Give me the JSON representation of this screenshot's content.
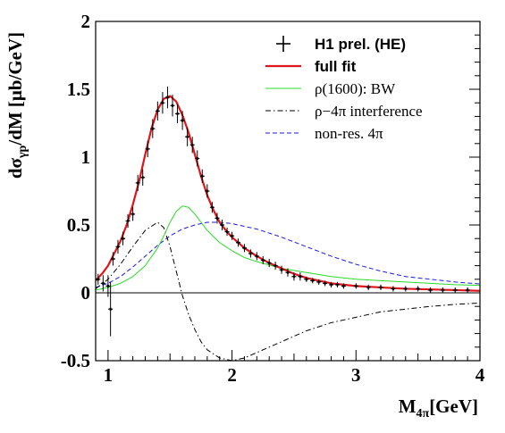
{
  "chart_data": {
    "type": "line",
    "xlabel": "M",
    "xlabel_sub": "4π",
    "xlabel_unit": "[GeV]",
    "ylabel_main": "dσ",
    "ylabel_sub": "γp",
    "ylabel_rest": "/dM [μb/GeV]",
    "xlim": [
      0.9,
      4.0
    ],
    "ylim": [
      -0.5,
      2.0
    ],
    "x_ticks": [
      {
        "value": 1,
        "label": "1"
      },
      {
        "value": 2,
        "label": "2"
      },
      {
        "value": 3,
        "label": "3"
      },
      {
        "value": 4,
        "label": "4"
      }
    ],
    "y_ticks": [
      {
        "value": -0.5,
        "label": "-0.5"
      },
      {
        "value": 0,
        "label": "0"
      },
      {
        "value": 0.5,
        "label": "0.5"
      },
      {
        "value": 1,
        "label": "1"
      },
      {
        "value": 1.5,
        "label": "1.5"
      },
      {
        "value": 2,
        "label": "2"
      }
    ],
    "grid": false,
    "legend_position": "top-right",
    "series": [
      {
        "name": "H1 prel. (HE)",
        "style": "points",
        "color": "#000000",
        "points": [
          [
            0.92,
            0.1,
            0.04
          ],
          [
            0.96,
            0.07,
            0.06
          ],
          [
            1.0,
            0.05,
            0.08
          ],
          [
            1.02,
            -0.12,
            0.2
          ],
          [
            1.04,
            0.25,
            0.05
          ],
          [
            1.08,
            0.34,
            0.05
          ],
          [
            1.12,
            0.4,
            0.05
          ],
          [
            1.16,
            0.53,
            0.05
          ],
          [
            1.2,
            0.58,
            0.05
          ],
          [
            1.24,
            0.81,
            0.06
          ],
          [
            1.28,
            0.85,
            0.06
          ],
          [
            1.32,
            1.06,
            0.06
          ],
          [
            1.36,
            1.21,
            0.07
          ],
          [
            1.4,
            1.34,
            0.07
          ],
          [
            1.44,
            1.4,
            0.08
          ],
          [
            1.48,
            1.44,
            0.08
          ],
          [
            1.52,
            1.38,
            0.08
          ],
          [
            1.56,
            1.32,
            0.07
          ],
          [
            1.6,
            1.27,
            0.07
          ],
          [
            1.64,
            1.15,
            0.07
          ],
          [
            1.68,
            1.09,
            0.06
          ],
          [
            1.72,
            0.99,
            0.06
          ],
          [
            1.76,
            0.86,
            0.05
          ],
          [
            1.8,
            0.75,
            0.05
          ],
          [
            1.84,
            0.63,
            0.04
          ],
          [
            1.88,
            0.55,
            0.04
          ],
          [
            1.92,
            0.5,
            0.04
          ],
          [
            1.96,
            0.45,
            0.03
          ],
          [
            2.0,
            0.42,
            0.03
          ],
          [
            2.05,
            0.37,
            0.03
          ],
          [
            2.1,
            0.33,
            0.03
          ],
          [
            2.15,
            0.29,
            0.03
          ],
          [
            2.2,
            0.27,
            0.03
          ],
          [
            2.25,
            0.24,
            0.03
          ],
          [
            2.3,
            0.22,
            0.03
          ],
          [
            2.35,
            0.2,
            0.03
          ],
          [
            2.4,
            0.17,
            0.03
          ],
          [
            2.45,
            0.15,
            0.03
          ],
          [
            2.5,
            0.12,
            0.03
          ],
          [
            2.55,
            0.12,
            0.03
          ],
          [
            2.6,
            0.1,
            0.02
          ],
          [
            2.65,
            0.09,
            0.02
          ],
          [
            2.7,
            0.08,
            0.02
          ],
          [
            2.75,
            0.07,
            0.02
          ],
          [
            2.8,
            0.06,
            0.02
          ],
          [
            2.85,
            0.06,
            0.02
          ],
          [
            2.9,
            0.05,
            0.02
          ],
          [
            3.0,
            0.05,
            0.02
          ],
          [
            3.1,
            0.04,
            0.02
          ],
          [
            3.2,
            0.04,
            0.02
          ],
          [
            3.3,
            0.03,
            0.02
          ],
          [
            3.4,
            0.03,
            0.02
          ],
          [
            3.5,
            0.03,
            0.02
          ],
          [
            3.6,
            0.02,
            0.02
          ],
          [
            3.7,
            0.02,
            0.02
          ],
          [
            3.8,
            0.02,
            0.02
          ],
          [
            3.9,
            0.02,
            0.02
          ]
        ]
      },
      {
        "name": "full fit",
        "style": "solid-thick",
        "color": "#e0151b",
        "points": [
          [
            0.9,
            0.09
          ],
          [
            0.96,
            0.15
          ],
          [
            1.0,
            0.2
          ],
          [
            1.05,
            0.29
          ],
          [
            1.1,
            0.38
          ],
          [
            1.15,
            0.5
          ],
          [
            1.2,
            0.65
          ],
          [
            1.25,
            0.82
          ],
          [
            1.3,
            1.02
          ],
          [
            1.35,
            1.21
          ],
          [
            1.4,
            1.35
          ],
          [
            1.45,
            1.43
          ],
          [
            1.5,
            1.45
          ],
          [
            1.55,
            1.41
          ],
          [
            1.6,
            1.31
          ],
          [
            1.65,
            1.18
          ],
          [
            1.7,
            1.02
          ],
          [
            1.75,
            0.86
          ],
          [
            1.8,
            0.72
          ],
          [
            1.85,
            0.61
          ],
          [
            1.9,
            0.52
          ],
          [
            1.95,
            0.46
          ],
          [
            2.0,
            0.41
          ],
          [
            2.1,
            0.33
          ],
          [
            2.2,
            0.27
          ],
          [
            2.3,
            0.22
          ],
          [
            2.4,
            0.18
          ],
          [
            2.5,
            0.14
          ],
          [
            2.6,
            0.11
          ],
          [
            2.7,
            0.09
          ],
          [
            2.8,
            0.07
          ],
          [
            3.0,
            0.05
          ],
          [
            3.2,
            0.04
          ],
          [
            3.4,
            0.03
          ],
          [
            3.6,
            0.025
          ],
          [
            3.8,
            0.02
          ],
          [
            4.0,
            0.015
          ]
        ]
      },
      {
        "name": "ρ(1600): BW",
        "style": "solid-thin",
        "color": "#27dc27",
        "points": [
          [
            0.9,
            0.02
          ],
          [
            1.0,
            0.04
          ],
          [
            1.1,
            0.07
          ],
          [
            1.2,
            0.12
          ],
          [
            1.3,
            0.2
          ],
          [
            1.4,
            0.33
          ],
          [
            1.45,
            0.42
          ],
          [
            1.5,
            0.52
          ],
          [
            1.55,
            0.6
          ],
          [
            1.6,
            0.64
          ],
          [
            1.65,
            0.63
          ],
          [
            1.7,
            0.58
          ],
          [
            1.75,
            0.52
          ],
          [
            1.8,
            0.46
          ],
          [
            1.9,
            0.37
          ],
          [
            2.0,
            0.31
          ],
          [
            2.1,
            0.26
          ],
          [
            2.2,
            0.23
          ],
          [
            2.4,
            0.18
          ],
          [
            2.6,
            0.15
          ],
          [
            2.8,
            0.12
          ],
          [
            3.0,
            0.1
          ],
          [
            3.2,
            0.09
          ],
          [
            3.4,
            0.08
          ],
          [
            3.6,
            0.07
          ],
          [
            3.8,
            0.06
          ],
          [
            4.0,
            0.055
          ]
        ]
      },
      {
        "name": "ρ−4π interference",
        "style": "dash-dot",
        "color": "#000000",
        "points": [
          [
            0.9,
            0.03
          ],
          [
            1.0,
            0.1
          ],
          [
            1.1,
            0.21
          ],
          [
            1.2,
            0.34
          ],
          [
            1.3,
            0.46
          ],
          [
            1.4,
            0.52
          ],
          [
            1.45,
            0.48
          ],
          [
            1.5,
            0.34
          ],
          [
            1.55,
            0.16
          ],
          [
            1.6,
            -0.02
          ],
          [
            1.65,
            -0.16
          ],
          [
            1.7,
            -0.27
          ],
          [
            1.75,
            -0.36
          ],
          [
            1.8,
            -0.42
          ],
          [
            1.9,
            -0.48
          ],
          [
            2.0,
            -0.5
          ],
          [
            2.1,
            -0.48
          ],
          [
            2.2,
            -0.44
          ],
          [
            2.4,
            -0.36
          ],
          [
            2.6,
            -0.28
          ],
          [
            2.8,
            -0.22
          ],
          [
            3.0,
            -0.18
          ],
          [
            3.2,
            -0.14
          ],
          [
            3.4,
            -0.12
          ],
          [
            3.6,
            -0.1
          ],
          [
            3.8,
            -0.085
          ],
          [
            4.0,
            -0.075
          ]
        ]
      },
      {
        "name": "non-res. 4π",
        "style": "dashed",
        "color": "#1a1ae6",
        "points": [
          [
            0.9,
            0.04
          ],
          [
            1.0,
            0.07
          ],
          [
            1.1,
            0.12
          ],
          [
            1.2,
            0.19
          ],
          [
            1.3,
            0.27
          ],
          [
            1.4,
            0.35
          ],
          [
            1.5,
            0.42
          ],
          [
            1.6,
            0.47
          ],
          [
            1.7,
            0.5
          ],
          [
            1.8,
            0.52
          ],
          [
            1.9,
            0.52
          ],
          [
            2.0,
            0.51
          ],
          [
            2.2,
            0.47
          ],
          [
            2.4,
            0.41
          ],
          [
            2.6,
            0.34
          ],
          [
            2.8,
            0.27
          ],
          [
            3.0,
            0.21
          ],
          [
            3.2,
            0.16
          ],
          [
            3.4,
            0.12
          ],
          [
            3.6,
            0.1
          ],
          [
            3.8,
            0.08
          ],
          [
            4.0,
            0.065
          ]
        ]
      }
    ],
    "legend": [
      {
        "text": "H1 prel. (HE)",
        "style": "points",
        "color": "#000000",
        "bold": true
      },
      {
        "text": "full fit",
        "style": "solid-thick",
        "color": "#e0151b",
        "bold": true
      },
      {
        "text": "ρ(1600): BW",
        "style": "solid-thin",
        "color": "#27dc27",
        "bold": false
      },
      {
        "text": "ρ−4π interference",
        "style": "dash-dot",
        "color": "#000000",
        "bold": false
      },
      {
        "text": "non-res. 4π",
        "style": "dashed",
        "color": "#1a1ae6",
        "bold": false
      }
    ]
  }
}
